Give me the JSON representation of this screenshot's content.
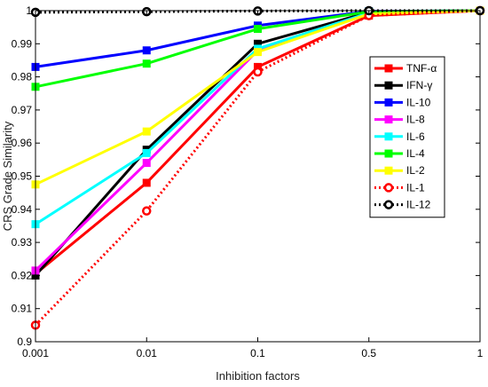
{
  "chart_data": {
    "type": "line",
    "title": "",
    "xlabel": "Inhibition factors",
    "ylabel": "CRS Grade Similarity",
    "categories": [
      "0.001",
      "0.01",
      "0.1",
      "0.5",
      "1"
    ],
    "ylim": [
      0.9,
      1.0
    ],
    "yticks": [
      "0.9",
      "0.91",
      "0.92",
      "0.93",
      "0.94",
      "0.95",
      "0.96",
      "0.97",
      "0.98",
      "0.99",
      "1"
    ],
    "grid": false,
    "legend_position": "right",
    "series": [
      {
        "name": "TNF-α",
        "color": "#ff0000",
        "style": "solid",
        "marker": "square",
        "values": [
          0.9205,
          0.948,
          0.983,
          0.9985,
          1.0
        ]
      },
      {
        "name": "IFN-γ",
        "color": "#000000",
        "style": "solid",
        "marker": "square",
        "values": [
          0.92,
          0.958,
          0.99,
          0.9995,
          1.0
        ]
      },
      {
        "name": "IL-10",
        "color": "#0000ff",
        "style": "solid",
        "marker": "square",
        "values": [
          0.983,
          0.988,
          0.9955,
          0.9998,
          1.0
        ]
      },
      {
        "name": "IL-8",
        "color": "#ff00ff",
        "style": "solid",
        "marker": "square",
        "values": [
          0.9215,
          0.954,
          0.988,
          0.9993,
          1.0
        ]
      },
      {
        "name": "IL-6",
        "color": "#00ffff",
        "style": "solid",
        "marker": "square",
        "values": [
          0.9355,
          0.957,
          0.9885,
          0.9993,
          1.0
        ]
      },
      {
        "name": "IL-4",
        "color": "#00ff00",
        "style": "solid",
        "marker": "square",
        "values": [
          0.977,
          0.984,
          0.9945,
          0.9997,
          1.0
        ]
      },
      {
        "name": "IL-2",
        "color": "#ffff00",
        "style": "solid",
        "marker": "square",
        "values": [
          0.9475,
          0.9635,
          0.9875,
          0.999,
          1.0
        ]
      },
      {
        "name": "IL-1",
        "color": "#ff0000",
        "style": "dotted",
        "marker": "circle",
        "values": [
          0.905,
          0.9395,
          0.9815,
          0.9985,
          1.0
        ]
      },
      {
        "name": "IL-12",
        "color": "#000000",
        "style": "dotted",
        "marker": "circle",
        "values": [
          0.9995,
          0.9997,
          0.9999,
          1.0,
          1.0
        ]
      }
    ]
  }
}
